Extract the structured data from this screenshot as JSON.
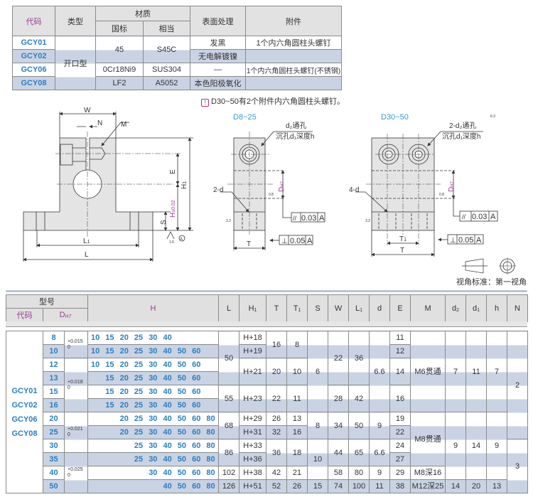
{
  "material_table": {
    "headers": {
      "code": "代码",
      "type": "类型",
      "material": "材质",
      "std": "国标",
      "equiv": "相当",
      "surface": "表面处理",
      "accessory": "附件"
    },
    "type_value": "开口型",
    "rows": [
      {
        "code": "GCY01",
        "surface": "发黑",
        "accessory": "1个内六角圆柱头螺钉"
      },
      {
        "code": "GCY02",
        "surface": "无电解镀镍",
        "accessory": ""
      },
      {
        "code": "GCY06",
        "std": "0Cr18Ni9",
        "equiv": "SUS304",
        "surface": "—",
        "accessory": "1个内六角圆柱头螺钉(不锈钢)"
      },
      {
        "code": "GCY08",
        "std": "LF2",
        "equiv": "A5052",
        "surface": "本色阳极氧化",
        "accessory": ""
      }
    ],
    "shared_std": "45",
    "shared_equiv": "S45C"
  },
  "note": {
    "icon": "warning-icon",
    "text": "D30~50有2个附件内六角圆柱头螺钉。"
  },
  "drawing": {
    "main_labels": {
      "W": "W",
      "N": "N",
      "M": "M",
      "E": "E",
      "H1": "H",
      "H1_sub": "1",
      "H": "H",
      "H_sub": "±0.02",
      "S": "S",
      "L1": "L",
      "L1_sub": "1",
      "L": "L",
      "rough": "1.6",
      "datum": "A"
    },
    "d825": {
      "title": "D8~25",
      "hole1": "d₂通孔",
      "hole2": "沉孔d₁深度h",
      "bolt": "2-d",
      "DH7": "D",
      "DH7_sub": "H7",
      "rough_in": "0.8",
      "rough_side": "3.2",
      "par": "0.03",
      "perp": "0.05",
      "datum": "A",
      "T": "T"
    },
    "d3050": {
      "title": "D30~50",
      "hole1": "2-d₂通孔",
      "hole2": "沉孔d₁深度h",
      "bolt": "4-d",
      "DH7": "D",
      "DH7_sub": "H7",
      "rough_in": "0.8",
      "rough_side": "3.2",
      "par": "0.03",
      "perp": "0.05",
      "datum": "A",
      "T": "T",
      "T1": "T",
      "T1_sub": "1",
      "rough_all": "6.3"
    },
    "projection": "视角标准：第一视角"
  },
  "spec_table": {
    "headers": {
      "model": "型号",
      "code": "代码",
      "D": "D",
      "D_sub": "H7",
      "H": "H",
      "cols": [
        {
          "l": "L"
        },
        {
          "l": "H",
          "s": "1"
        },
        {
          "l": "T"
        },
        {
          "l": "T",
          "s": "1"
        },
        {
          "l": "S"
        },
        {
          "l": "W"
        },
        {
          "l": "L",
          "s": "1"
        },
        {
          "l": "d"
        },
        {
          "l": "E"
        },
        {
          "l": "M"
        },
        {
          "l": "d",
          "s": "2"
        },
        {
          "l": "d",
          "s": "1"
        },
        {
          "l": "h"
        },
        {
          "l": "N"
        }
      ]
    },
    "codes": [
      "GCY01",
      "GCY02",
      "GCY06",
      "GCY08"
    ],
    "rows": [
      {
        "D": "8",
        "tol": [
          "+0.015",
          "0",
          2
        ],
        "H": [
          "10",
          "15",
          "20",
          "25",
          "30",
          "40"
        ],
        "c": [
          [
            "L",
            "50",
            4
          ],
          [
            "H1",
            "H+18",
            1
          ],
          [
            "T",
            "16",
            2
          ],
          [
            "T1",
            "8",
            2
          ],
          [
            "S",
            "6",
            6
          ],
          [
            "W",
            "22",
            4
          ],
          [
            "L1",
            "36",
            4
          ],
          [
            "d",
            "6.6",
            6
          ],
          [
            "E",
            "11",
            1
          ],
          [
            "M",
            "M6贯通",
            6
          ],
          [
            "d2",
            "7",
            6
          ],
          [
            "d1",
            "11",
            6
          ],
          [
            "h",
            "7",
            6
          ],
          [
            "N",
            "2",
            8
          ]
        ]
      },
      {
        "D": "10",
        "H": [
          "10",
          "15",
          "20",
          "25",
          "30",
          "40",
          "50",
          "60"
        ],
        "c": [
          [
            "H1",
            "H+19",
            1
          ],
          [
            "E",
            "12",
            1
          ]
        ]
      },
      {
        "D": "12",
        "tol": [
          "+0.018",
          "0",
          4
        ],
        "H": [
          "10",
          "15",
          "20",
          "25",
          "30",
          "40",
          "50",
          "60"
        ],
        "c": [
          [
            "H1",
            "H+21",
            2
          ],
          [
            "T",
            "20",
            2
          ],
          [
            "T1",
            "10",
            2
          ],
          [
            "E",
            "14",
            2
          ]
        ]
      },
      {
        "D": "13",
        "H": [
          "15",
          "20",
          "25",
          "30",
          "40",
          "50",
          "60"
        ],
        "c": []
      },
      {
        "D": "15",
        "H": [
          "15",
          "20",
          "25",
          "30",
          "40",
          "50",
          "60"
        ],
        "c": [
          [
            "L",
            "55",
            2
          ],
          [
            "H1",
            "H+23",
            2
          ],
          [
            "T",
            "22",
            2
          ],
          [
            "T1",
            "11",
            2
          ],
          [
            "W",
            "28",
            2
          ],
          [
            "L1",
            "42",
            2
          ],
          [
            "E",
            "16",
            2
          ]
        ]
      },
      {
        "D": "16",
        "H": [
          "15",
          "20",
          "25",
          "30",
          "40",
          "50",
          "60"
        ],
        "c": []
      },
      {
        "D": "20",
        "tol": [
          "+0.021",
          "0",
          3
        ],
        "H": [
          "20",
          "25",
          "30",
          "40",
          "50",
          "60",
          "80"
        ],
        "c": [
          [
            "L",
            "68",
            2
          ],
          [
            "H1",
            "H+29",
            1
          ],
          [
            "T",
            "26",
            1
          ],
          [
            "T1",
            "13",
            1
          ],
          [
            "S",
            "8",
            2
          ],
          [
            "W",
            "34",
            2
          ],
          [
            "L1",
            "50",
            2
          ],
          [
            "d",
            "9",
            2
          ],
          [
            "E",
            "19",
            1
          ],
          [
            "M",
            "M8贯通",
            4
          ],
          [
            "d2",
            "9",
            5
          ],
          [
            "d1",
            "14",
            5
          ],
          [
            "h",
            "9",
            5
          ]
        ]
      },
      {
        "D": "25",
        "H": [
          "20",
          "25",
          "30",
          "40",
          "50",
          "60",
          "80"
        ],
        "c": [
          [
            "H1",
            "H+31",
            1
          ],
          [
            "T",
            "32",
            1
          ],
          [
            "T1",
            "16",
            1
          ],
          [
            "E",
            "22",
            1
          ]
        ]
      },
      {
        "D": "30",
        "H": [
          "25",
          "30",
          "40",
          "50",
          "60",
          "80"
        ],
        "c": [
          [
            "L",
            "86",
            2
          ],
          [
            "H1",
            "H+33",
            1
          ],
          [
            "T",
            "36",
            2
          ],
          [
            "T1",
            "18",
            2
          ],
          [
            "S",
            "10",
            3
          ],
          [
            "W",
            "44",
            2
          ],
          [
            "L1",
            "65",
            2
          ],
          [
            "d",
            "6.6",
            2
          ],
          [
            "E",
            "24",
            1
          ],
          [
            "N",
            "3",
            4
          ]
        ]
      },
      {
        "D": "35",
        "tol": [
          "+0.025",
          "0",
          3
        ],
        "H": [
          "25",
          "30",
          "40",
          "50",
          "60",
          "80"
        ],
        "c": [
          [
            "H1",
            "H+36",
            1
          ],
          [
            "E",
            "27",
            1
          ]
        ]
      },
      {
        "D": "40",
        "H": [
          "30",
          "40",
          "50",
          "60",
          "80"
        ],
        "c": [
          [
            "L",
            "102",
            1
          ],
          [
            "H1",
            "H+38",
            1
          ],
          [
            "T",
            "42",
            1
          ],
          [
            "T1",
            "21",
            1
          ],
          [
            "W",
            "58",
            1
          ],
          [
            "L1",
            "80",
            1
          ],
          [
            "d",
            "9",
            1
          ],
          [
            "E",
            "29",
            1
          ],
          [
            "M",
            "M8深16",
            1
          ]
        ]
      },
      {
        "D": "50",
        "H": [
          "40",
          "50",
          "60",
          "80"
        ],
        "c": [
          [
            "L",
            "126",
            1
          ],
          [
            "H1",
            "H+51",
            1
          ],
          [
            "T",
            "52",
            1
          ],
          [
            "T1",
            "26",
            1
          ],
          [
            "S",
            "15",
            1
          ],
          [
            "W",
            "74",
            1
          ],
          [
            "L1",
            "100",
            1
          ],
          [
            "d",
            "11",
            1
          ],
          [
            "E",
            "38",
            1
          ],
          [
            "M",
            "M12深25",
            1
          ],
          [
            "d2",
            "14",
            1
          ],
          [
            "d1",
            "20",
            1
          ],
          [
            "h",
            "13",
            1
          ]
        ]
      }
    ],
    "h_slots": [
      "10",
      "15",
      "20",
      "25",
      "30",
      "40",
      "50",
      "60",
      "80"
    ]
  },
  "colors": {
    "code_blue": "#2a7fbf",
    "header_magenta": "#9b3a93",
    "stripe": "#cad3e4",
    "header_gray": "#e0e0e0"
  }
}
